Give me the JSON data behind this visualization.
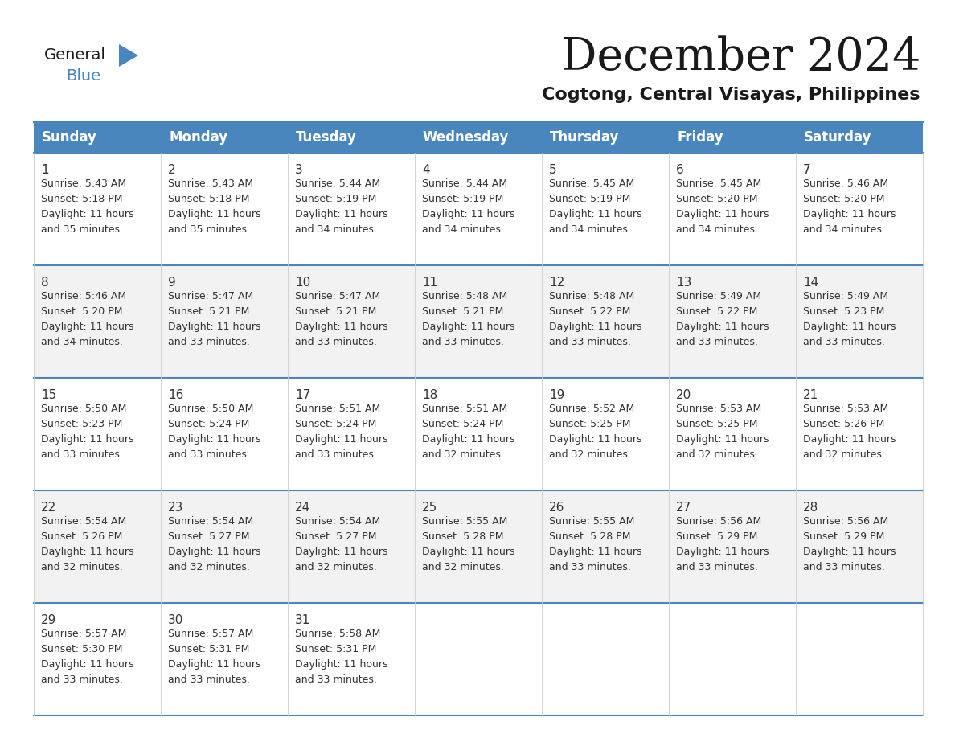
{
  "title": "December 2024",
  "subtitle": "Cogtong, Central Visayas, Philippines",
  "days_of_week": [
    "Sunday",
    "Monday",
    "Tuesday",
    "Wednesday",
    "Thursday",
    "Friday",
    "Saturday"
  ],
  "header_bg": "#4a86be",
  "header_text": "#FFFFFF",
  "row_bg_odd": "#f2f2f2",
  "row_bg_even": "#ffffff",
  "cell_border_color": "#4a86be",
  "title_color": "#1a1a1a",
  "subtitle_color": "#1a1a1a",
  "day_number_color": "#333333",
  "cell_text_color": "#333333",
  "logo_general_color": "#1a1a1a",
  "logo_blue_color": "#4a86be",
  "logo_triangle_color": "#4a86be",
  "calendar_data": [
    [
      {
        "day": 1,
        "sunrise": "5:43 AM",
        "sunset": "5:18 PM",
        "daylight_mins": "35"
      },
      {
        "day": 2,
        "sunrise": "5:43 AM",
        "sunset": "5:18 PM",
        "daylight_mins": "35"
      },
      {
        "day": 3,
        "sunrise": "5:44 AM",
        "sunset": "5:19 PM",
        "daylight_mins": "34"
      },
      {
        "day": 4,
        "sunrise": "5:44 AM",
        "sunset": "5:19 PM",
        "daylight_mins": "34"
      },
      {
        "day": 5,
        "sunrise": "5:45 AM",
        "sunset": "5:19 PM",
        "daylight_mins": "34"
      },
      {
        "day": 6,
        "sunrise": "5:45 AM",
        "sunset": "5:20 PM",
        "daylight_mins": "34"
      },
      {
        "day": 7,
        "sunrise": "5:46 AM",
        "sunset": "5:20 PM",
        "daylight_mins": "34"
      }
    ],
    [
      {
        "day": 8,
        "sunrise": "5:46 AM",
        "sunset": "5:20 PM",
        "daylight_mins": "34"
      },
      {
        "day": 9,
        "sunrise": "5:47 AM",
        "sunset": "5:21 PM",
        "daylight_mins": "33"
      },
      {
        "day": 10,
        "sunrise": "5:47 AM",
        "sunset": "5:21 PM",
        "daylight_mins": "33"
      },
      {
        "day": 11,
        "sunrise": "5:48 AM",
        "sunset": "5:21 PM",
        "daylight_mins": "33"
      },
      {
        "day": 12,
        "sunrise": "5:48 AM",
        "sunset": "5:22 PM",
        "daylight_mins": "33"
      },
      {
        "day": 13,
        "sunrise": "5:49 AM",
        "sunset": "5:22 PM",
        "daylight_mins": "33"
      },
      {
        "day": 14,
        "sunrise": "5:49 AM",
        "sunset": "5:23 PM",
        "daylight_mins": "33"
      }
    ],
    [
      {
        "day": 15,
        "sunrise": "5:50 AM",
        "sunset": "5:23 PM",
        "daylight_mins": "33"
      },
      {
        "day": 16,
        "sunrise": "5:50 AM",
        "sunset": "5:24 PM",
        "daylight_mins": "33"
      },
      {
        "day": 17,
        "sunrise": "5:51 AM",
        "sunset": "5:24 PM",
        "daylight_mins": "33"
      },
      {
        "day": 18,
        "sunrise": "5:51 AM",
        "sunset": "5:24 PM",
        "daylight_mins": "32"
      },
      {
        "day": 19,
        "sunrise": "5:52 AM",
        "sunset": "5:25 PM",
        "daylight_mins": "32"
      },
      {
        "day": 20,
        "sunrise": "5:53 AM",
        "sunset": "5:25 PM",
        "daylight_mins": "32"
      },
      {
        "day": 21,
        "sunrise": "5:53 AM",
        "sunset": "5:26 PM",
        "daylight_mins": "32"
      }
    ],
    [
      {
        "day": 22,
        "sunrise": "5:54 AM",
        "sunset": "5:26 PM",
        "daylight_mins": "32"
      },
      {
        "day": 23,
        "sunrise": "5:54 AM",
        "sunset": "5:27 PM",
        "daylight_mins": "32"
      },
      {
        "day": 24,
        "sunrise": "5:54 AM",
        "sunset": "5:27 PM",
        "daylight_mins": "32"
      },
      {
        "day": 25,
        "sunrise": "5:55 AM",
        "sunset": "5:28 PM",
        "daylight_mins": "32"
      },
      {
        "day": 26,
        "sunrise": "5:55 AM",
        "sunset": "5:28 PM",
        "daylight_mins": "33"
      },
      {
        "day": 27,
        "sunrise": "5:56 AM",
        "sunset": "5:29 PM",
        "daylight_mins": "33"
      },
      {
        "day": 28,
        "sunrise": "5:56 AM",
        "sunset": "5:29 PM",
        "daylight_mins": "33"
      }
    ],
    [
      {
        "day": 29,
        "sunrise": "5:57 AM",
        "sunset": "5:30 PM",
        "daylight_mins": "33"
      },
      {
        "day": 30,
        "sunrise": "5:57 AM",
        "sunset": "5:31 PM",
        "daylight_mins": "33"
      },
      {
        "day": 31,
        "sunrise": "5:58 AM",
        "sunset": "5:31 PM",
        "daylight_mins": "33"
      },
      null,
      null,
      null,
      null
    ]
  ]
}
